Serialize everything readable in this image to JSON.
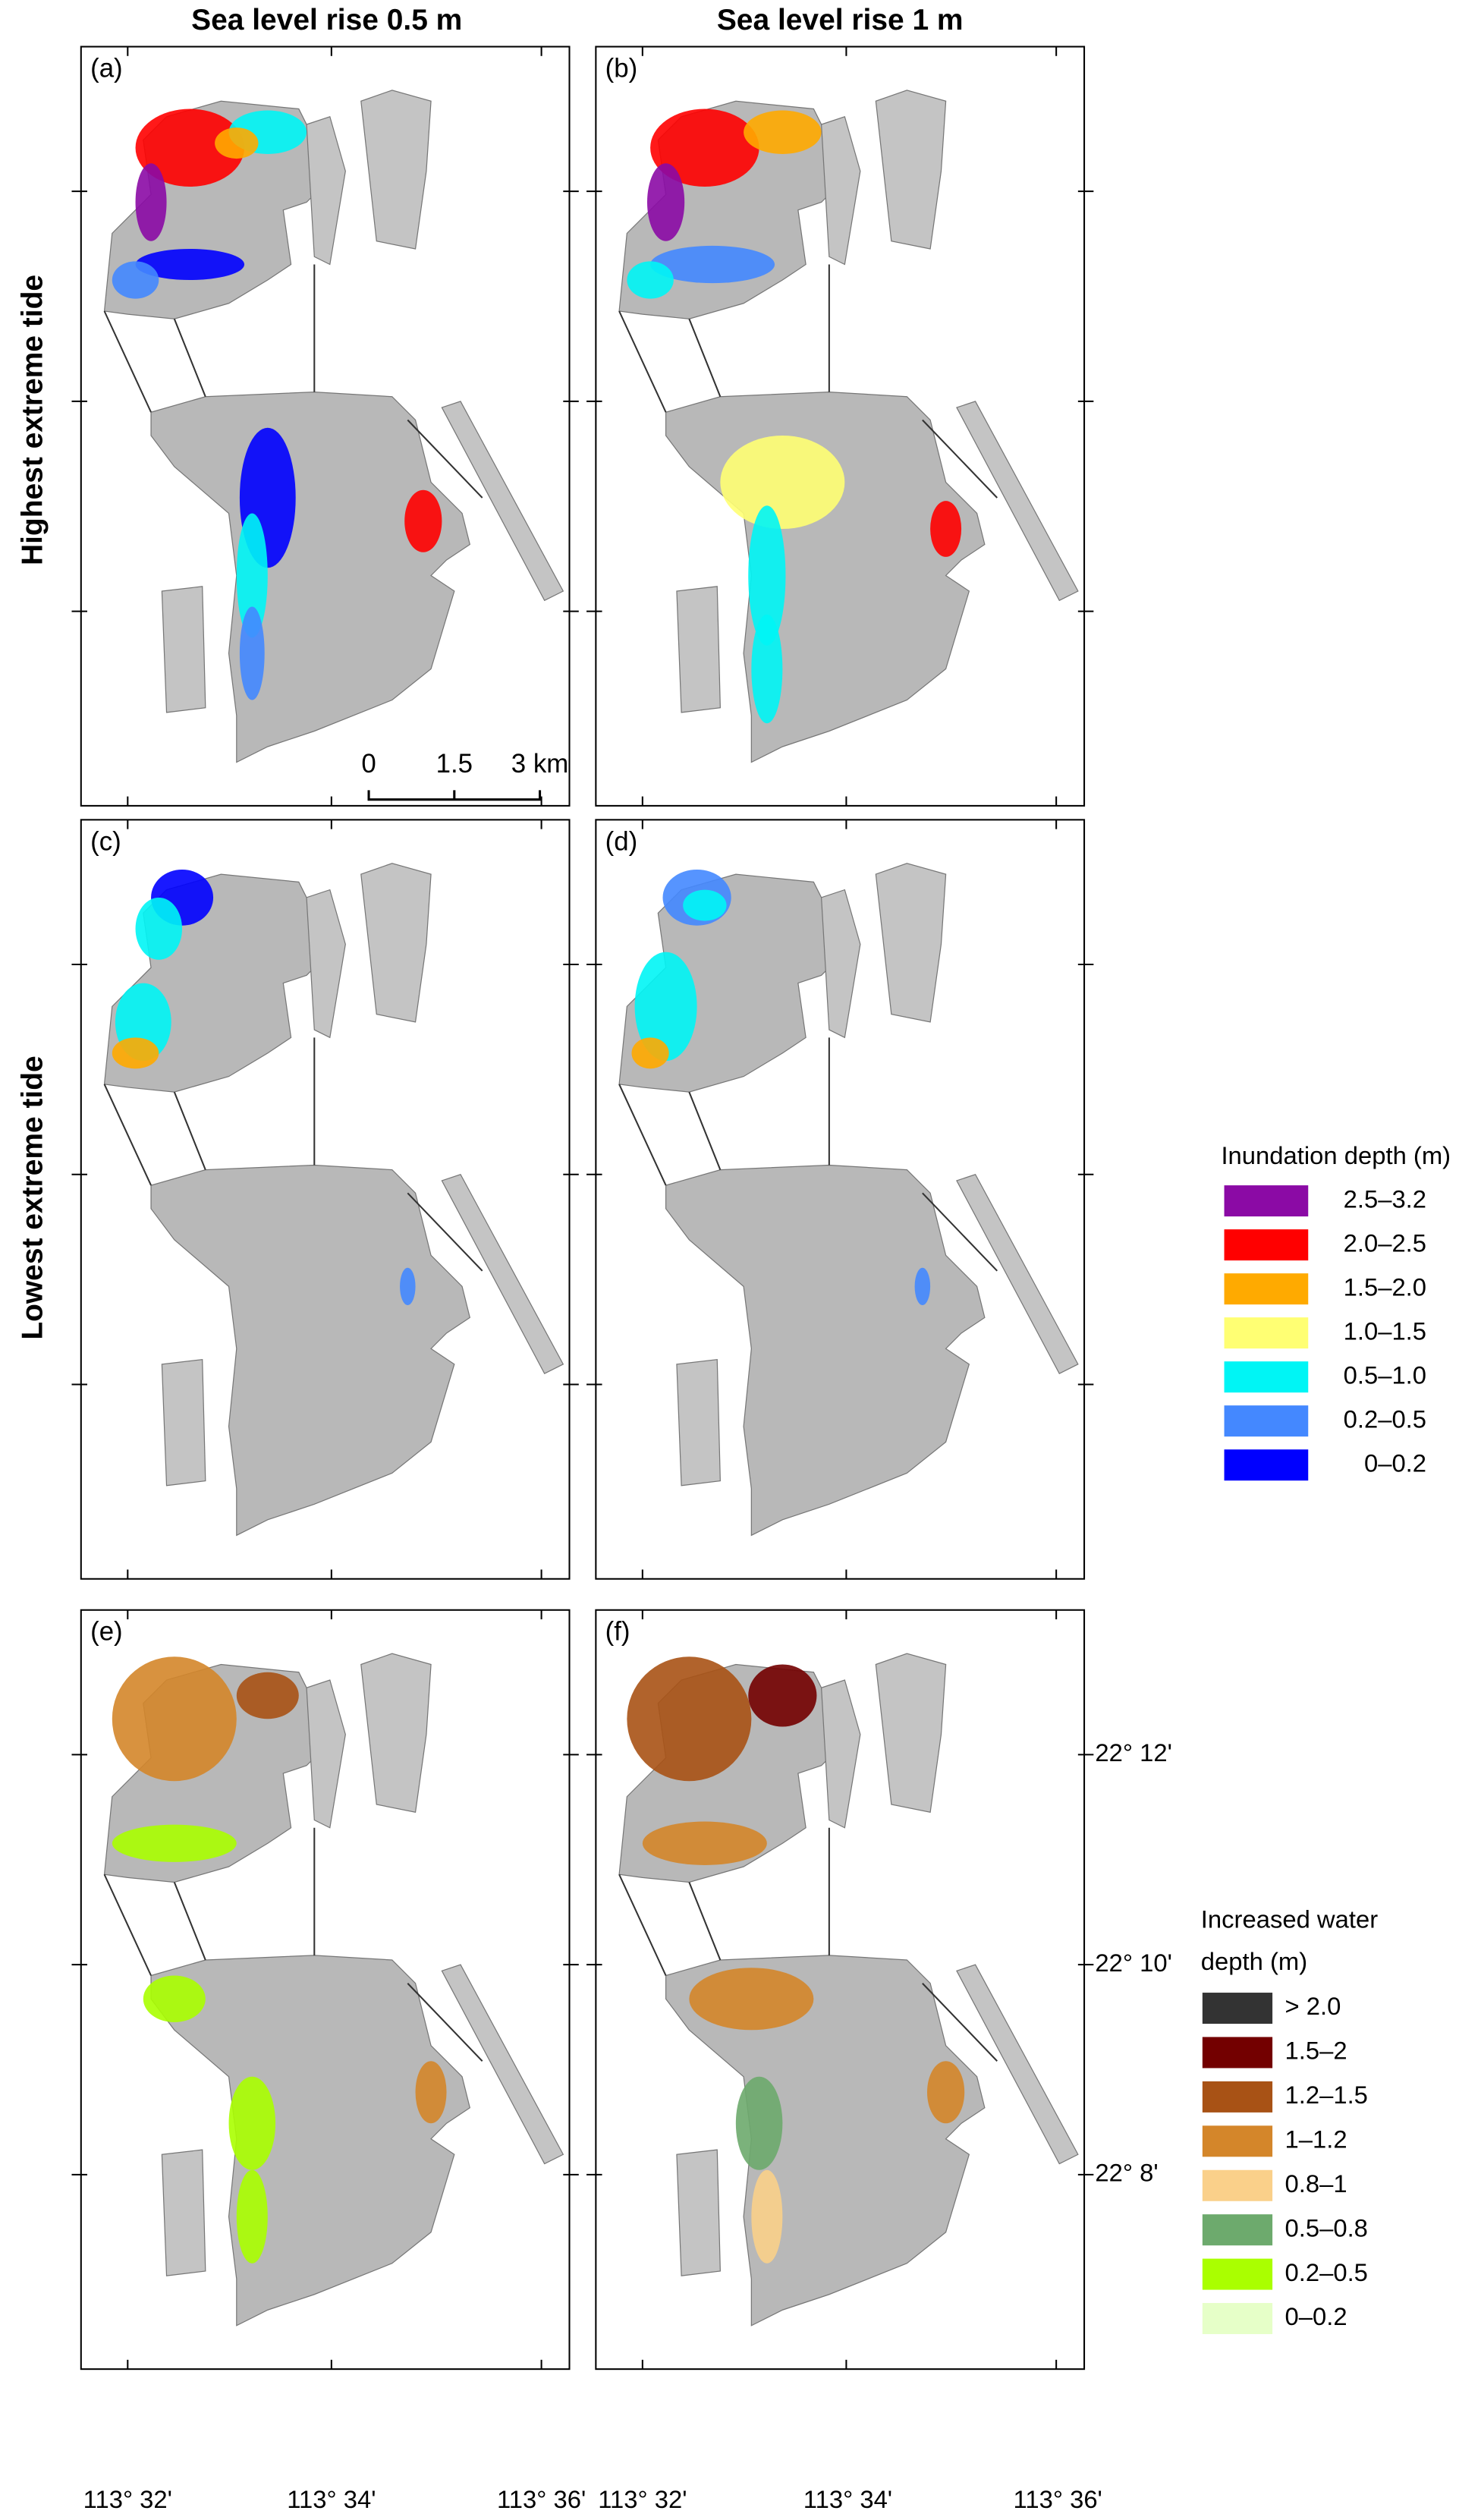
{
  "columns": [
    "Sea level rise 0.5 m",
    "Sea level rise 1 m"
  ],
  "rows": [
    "Highest extreme tide",
    "Lowest extreme tide"
  ],
  "panels": [
    "(a)",
    "(b)",
    "(c)",
    "(d)",
    "(e)",
    "(f)"
  ],
  "scale_bar": [
    "0",
    "1.5",
    "3 km"
  ],
  "legend_inundation": {
    "title": "Inundation depth (m)",
    "items": [
      {
        "label": "2.5–3.2",
        "color": "#8b0aa5"
      },
      {
        "label": "2.0–2.5",
        "color": "#ff0000"
      },
      {
        "label": "1.5–2.0",
        "color": "#ffaa00"
      },
      {
        "label": "1.0–1.5",
        "color": "#ffff73"
      },
      {
        "label": "0.5–1.0",
        "color": "#00f5f5"
      },
      {
        "label": "0.2–0.5",
        "color": "#4488ff"
      },
      {
        "label": "0–0.2",
        "color": "#0000ff"
      }
    ]
  },
  "legend_increase": {
    "title": [
      "Increased water",
      "depth (m)"
    ],
    "items": [
      {
        "label": "> 2.0",
        "color": "#333333"
      },
      {
        "label": "1.5–2",
        "color": "#730000"
      },
      {
        "label": "1.2–1.5",
        "color": "#a85215"
      },
      {
        "label": "1–1.2",
        "color": "#d4862a"
      },
      {
        "label": "0.8–1",
        "color": "#fad08a"
      },
      {
        "label": "0.5–0.8",
        "color": "#6daa6d"
      },
      {
        "label": "0.2–0.5",
        "color": "#aaff00"
      },
      {
        "label": "0–0.2",
        "color": "#e6ffc8"
      }
    ]
  },
  "lon_ticks": [
    "113° 32'",
    "113° 34'",
    "113° 36'"
  ],
  "lat_ticks": [
    "22° 12'",
    "22° 10'",
    "22° 8'"
  ]
}
